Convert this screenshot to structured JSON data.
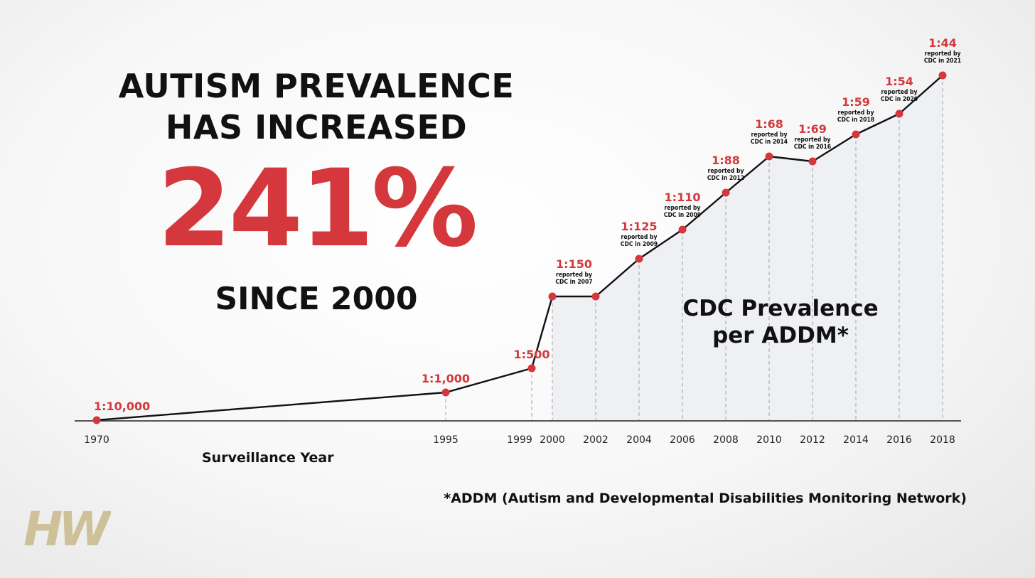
{
  "headline": {
    "line1": "AUTISM PREVALENCE",
    "line2": "HAS INCREASED",
    "percent": "241%",
    "since": "SINCE 2000"
  },
  "footnote": "*ADDM (Autism and Developmental Disabilities Monitoring Network)",
  "logo": {
    "text": "HW",
    "color": "#c8b88a"
  },
  "colors": {
    "accent": "#d4383c",
    "line": "#111111",
    "text": "#111111"
  },
  "chart_data": {
    "type": "line",
    "xlabel": "Surveillance Year",
    "ylabel": "",
    "annotation": [
      "CDC Prevalence",
      "per ADDM*"
    ],
    "x_ticks": [
      "1970",
      "1995",
      "1999",
      "2000",
      "2002",
      "2004",
      "2006",
      "2008",
      "2010",
      "2012",
      "2014",
      "2016",
      "2018"
    ],
    "points": [
      {
        "x": 1970,
        "ratio": 10000,
        "label": "1:10,000",
        "note": ""
      },
      {
        "x": 1995,
        "ratio": 1000,
        "label": "1:1,000",
        "note": ""
      },
      {
        "x": 1999,
        "ratio": 500,
        "label": "1:500",
        "note": ""
      },
      {
        "x": 2000,
        "ratio": 150,
        "label": "",
        "note": ""
      },
      {
        "x": 2002,
        "ratio": 150,
        "label": "1:150",
        "note": "reported by CDC in 2007"
      },
      {
        "x": 2004,
        "ratio": 125,
        "label": "1:125",
        "note": "reported by CDC in 2009"
      },
      {
        "x": 2006,
        "ratio": 110,
        "label": "1:110",
        "note": "reported by CDC in 2009"
      },
      {
        "x": 2008,
        "ratio": 88,
        "label": "1:88",
        "note": "reported by CDC in 2012"
      },
      {
        "x": 2010,
        "ratio": 68,
        "label": "1:68",
        "note": "reported by CDC in 2014"
      },
      {
        "x": 2012,
        "ratio": 69,
        "label": "1:69",
        "note": "reported by CDC in 2016"
      },
      {
        "x": 2014,
        "ratio": 59,
        "label": "1:59",
        "note": "reported by CDC in 2018"
      },
      {
        "x": 2016,
        "ratio": 54,
        "label": "1:54",
        "note": "reported by CDC in 2020"
      },
      {
        "x": 2018,
        "ratio": 44,
        "label": "1:44",
        "note": "reported by CDC in 2021"
      }
    ]
  }
}
